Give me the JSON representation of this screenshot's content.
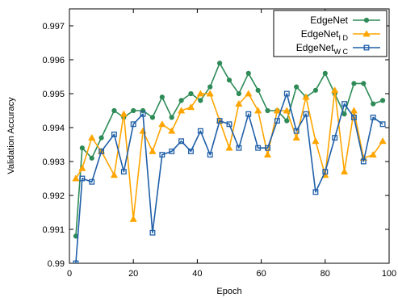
{
  "chart_data": {
    "type": "line",
    "xlabel": "Epoch",
    "ylabel": "Validation Accuracy",
    "xlim": [
      0,
      100
    ],
    "ylim": [
      0.99,
      0.9975
    ],
    "x_ticks": [
      0,
      20,
      40,
      60,
      80,
      100
    ],
    "y_ticks": [
      0.99,
      0.991,
      0.992,
      0.993,
      0.994,
      0.995,
      0.996,
      0.997
    ],
    "legend_position": "top-right",
    "grid": false,
    "x": [
      2,
      4,
      7,
      10,
      14,
      17,
      20,
      23,
      26,
      29,
      32,
      35,
      38,
      41,
      44,
      47,
      50,
      53,
      56,
      59,
      62,
      65,
      68,
      71,
      74,
      77,
      80,
      83,
      86,
      89,
      92,
      95,
      98
    ],
    "series": [
      {
        "name": "EdgeNet",
        "name_base": "EdgeNet",
        "name_sub": "",
        "color": "#2e8b57",
        "marker": "circle",
        "values": [
          0.9908,
          0.9934,
          0.9931,
          0.9937,
          0.9945,
          0.9943,
          0.9945,
          0.9945,
          0.9943,
          0.9949,
          0.9943,
          0.9948,
          0.995,
          0.9948,
          0.9952,
          0.9959,
          0.9954,
          0.995,
          0.9956,
          0.9951,
          0.9945,
          0.9945,
          0.9942,
          0.9952,
          0.9949,
          0.9951,
          0.9956,
          0.995,
          0.9944,
          0.9953,
          0.9953,
          0.9947,
          0.9948
        ]
      },
      {
        "name": "EdgeNetID",
        "name_base": "EdgeNet",
        "name_sub": "I D",
        "color": "#ffa500",
        "marker": "triangle",
        "values": [
          0.9925,
          0.9928,
          0.9937,
          0.9933,
          0.9926,
          0.9944,
          0.9913,
          0.9939,
          0.9933,
          0.9941,
          0.9939,
          0.9945,
          0.9946,
          0.995,
          0.995,
          0.9942,
          0.9934,
          0.9947,
          0.995,
          0.9945,
          0.9932,
          0.9945,
          0.9945,
          0.9937,
          0.9949,
          0.9936,
          0.9926,
          0.9951,
          0.9927,
          0.9945,
          0.9931,
          0.9932,
          0.9936
        ]
      },
      {
        "name": "EdgeNetWC",
        "name_base": "EdgeNet",
        "name_sub": "W C",
        "color": "#1f5fa8",
        "marker": "square",
        "values": [
          0.99,
          0.9925,
          0.9924,
          0.9933,
          0.9938,
          0.9927,
          0.9941,
          0.9944,
          0.9909,
          0.9932,
          0.9933,
          0.9936,
          0.9933,
          0.9939,
          0.9932,
          0.9942,
          0.9941,
          0.9934,
          0.9944,
          0.9934,
          0.9934,
          0.9942,
          0.995,
          0.9939,
          0.9944,
          0.9921,
          0.9927,
          0.9937,
          0.9947,
          0.9943,
          0.993,
          0.9943,
          0.9941
        ]
      }
    ]
  }
}
